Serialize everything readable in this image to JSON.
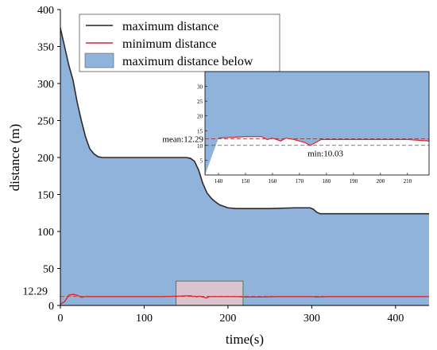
{
  "chart_data": {
    "type": "area",
    "xlabel": "time(s)",
    "ylabel": "distance (m)",
    "xlim": [
      0,
      440
    ],
    "ylim": [
      0,
      400
    ],
    "xticks": [
      0,
      100,
      200,
      300,
      400
    ],
    "yticks": [
      0,
      50,
      100,
      150,
      200,
      250,
      300,
      350,
      400
    ],
    "extra_ytick": {
      "value": 12.29,
      "label": "12.29"
    },
    "legend": {
      "position": "top-left",
      "entries": [
        {
          "label": "maximum distance",
          "color": "#222222",
          "kind": "line"
        },
        {
          "label": "minimum distance",
          "color": "#e0222a",
          "kind": "line"
        },
        {
          "label": "maximum distance below",
          "color": "#8fb3da",
          "kind": "area"
        }
      ]
    },
    "series": [
      {
        "name": "maximum distance",
        "color": "#2b2b2b",
        "points": [
          [
            0,
            375
          ],
          [
            5,
            350
          ],
          [
            10,
            325
          ],
          [
            15,
            305
          ],
          [
            20,
            275
          ],
          [
            25,
            250
          ],
          [
            30,
            228
          ],
          [
            35,
            212
          ],
          [
            40,
            205
          ],
          [
            45,
            201
          ],
          [
            50,
            200
          ],
          [
            60,
            200
          ],
          [
            80,
            200
          ],
          [
            100,
            200
          ],
          [
            120,
            200
          ],
          [
            140,
            200
          ],
          [
            150,
            200
          ],
          [
            155,
            199
          ],
          [
            160,
            195
          ],
          [
            165,
            183
          ],
          [
            170,
            165
          ],
          [
            175,
            152
          ],
          [
            180,
            145
          ],
          [
            185,
            140
          ],
          [
            190,
            136
          ],
          [
            195,
            134
          ],
          [
            200,
            132
          ],
          [
            210,
            131
          ],
          [
            230,
            131
          ],
          [
            250,
            131
          ],
          [
            280,
            132
          ],
          [
            298,
            132
          ],
          [
            302,
            130
          ],
          [
            306,
            126
          ],
          [
            310,
            124
          ],
          [
            330,
            124
          ],
          [
            360,
            124
          ],
          [
            400,
            124
          ],
          [
            420,
            124
          ],
          [
            440,
            124
          ]
        ]
      },
      {
        "name": "minimum distance",
        "color": "#e0222a",
        "points": [
          [
            0,
            2
          ],
          [
            5,
            5
          ],
          [
            10,
            14
          ],
          [
            15,
            15
          ],
          [
            20,
            14
          ],
          [
            25,
            11
          ],
          [
            30,
            12
          ],
          [
            35,
            12
          ],
          [
            40,
            12
          ],
          [
            50,
            12
          ],
          [
            60,
            12
          ],
          [
            80,
            12
          ],
          [
            100,
            12
          ],
          [
            120,
            12
          ],
          [
            140,
            12.5
          ],
          [
            150,
            13
          ],
          [
            156,
            13
          ],
          [
            158,
            12
          ],
          [
            160,
            12.5
          ],
          [
            163,
            11.5
          ],
          [
            165,
            12.5
          ],
          [
            168,
            12
          ],
          [
            170,
            11.5
          ],
          [
            172,
            11
          ],
          [
            174,
            10
          ],
          [
            176,
            11
          ],
          [
            178,
            12
          ],
          [
            180,
            12
          ],
          [
            185,
            12
          ],
          [
            190,
            12
          ],
          [
            200,
            12
          ],
          [
            210,
            12
          ],
          [
            220,
            11.5
          ],
          [
            240,
            11.5
          ],
          [
            260,
            12
          ],
          [
            280,
            12
          ],
          [
            300,
            12
          ],
          [
            305,
            11.5
          ],
          [
            320,
            12
          ],
          [
            340,
            12
          ],
          [
            360,
            12
          ],
          [
            380,
            12
          ],
          [
            400,
            12
          ],
          [
            420,
            12
          ],
          [
            440,
            12
          ]
        ]
      }
    ],
    "reference_lines": [
      {
        "label": "mean:12.29",
        "value": 12.29,
        "color": "#7a2a2a",
        "style": "dashed"
      },
      {
        "label": "min:10.03",
        "value": 10.03,
        "color": "#555555",
        "style": "dashed"
      }
    ],
    "highlight_box": {
      "x": [
        138,
        218
      ],
      "y": [
        0,
        33
      ]
    },
    "inset": {
      "xlim": [
        135,
        218
      ],
      "ylim": [
        0,
        35
      ],
      "xticks": [
        140,
        150,
        160,
        170,
        180,
        190,
        200,
        210
      ],
      "yticks": [
        5,
        10,
        15,
        20,
        25,
        30
      ],
      "mean_label": "mean:12.29",
      "min_label": "min:10.03"
    },
    "colors": {
      "fill": "#8fb3da",
      "box": "#3d8a3d",
      "box_fill": "#f3c8c8"
    }
  }
}
